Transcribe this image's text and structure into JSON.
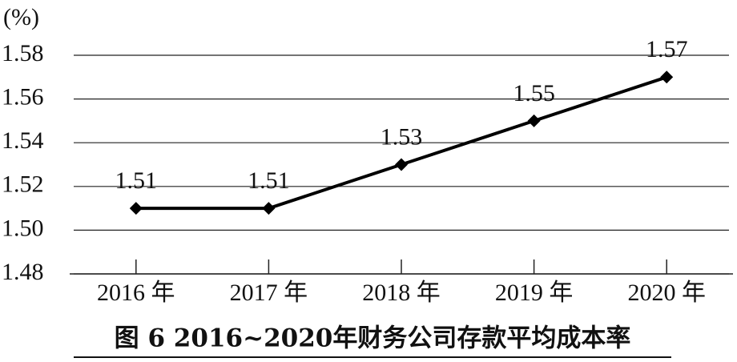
{
  "chart_data": {
    "type": "line",
    "title": "图 6  2016~2020年财务公司存款平均成本率",
    "y_label": "(%)",
    "categories": [
      "2016 年",
      "2017 年",
      "2018 年",
      "2019 年",
      "2020 年"
    ],
    "values": [
      1.51,
      1.51,
      1.53,
      1.55,
      1.57
    ],
    "color": "#000000",
    "ylim": [
      1.48,
      1.58
    ],
    "yticks": [
      1.48,
      {
        "value": 1.5,
        "label": "1.50"
      },
      1.52,
      1.54,
      1.56,
      1.58
    ],
    "grid": true
  }
}
